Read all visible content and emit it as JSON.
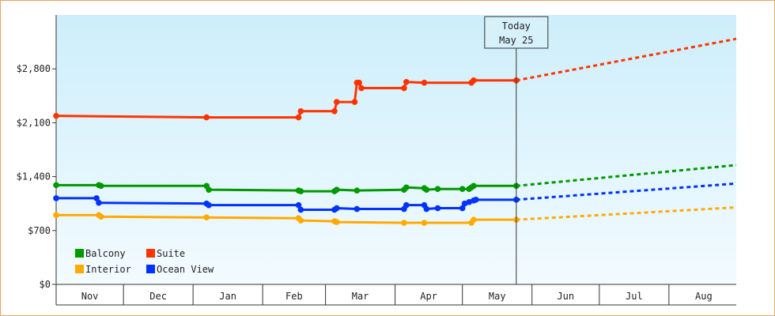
{
  "chart_data": {
    "type": "line",
    "title": "",
    "xlabel": "",
    "ylabel": "",
    "x_type": "date",
    "xlim": [
      "2024-11-01",
      "2025-08-31"
    ],
    "ylim": [
      0,
      3500
    ],
    "yticks": [
      0,
      700,
      1400,
      2100,
      2800
    ],
    "ytick_labels": [
      "$0",
      "$700",
      "$1,400",
      "$2,100",
      "$2,800"
    ],
    "month_ticks": [
      {
        "label": "Nov",
        "start": "2024-11-01",
        "end": "2024-12-01"
      },
      {
        "label": "Dec",
        "start": "2024-12-01",
        "end": "2025-01-01"
      },
      {
        "label": "Jan",
        "start": "2025-01-01",
        "end": "2025-02-01"
      },
      {
        "label": "Feb",
        "start": "2025-02-01",
        "end": "2025-03-01"
      },
      {
        "label": "Mar",
        "start": "2025-03-01",
        "end": "2025-04-01"
      },
      {
        "label": "Apr",
        "start": "2025-04-01",
        "end": "2025-05-01"
      },
      {
        "label": "May",
        "start": "2025-05-01",
        "end": "2025-06-01"
      },
      {
        "label": "Jun",
        "start": "2025-06-01",
        "end": "2025-07-01"
      },
      {
        "label": "Jul",
        "start": "2025-07-01",
        "end": "2025-08-01"
      },
      {
        "label": "Aug",
        "start": "2025-08-01",
        "end": "2025-09-01"
      }
    ],
    "today": {
      "date": "2025-05-25",
      "line1": "Today",
      "line2": "May 25"
    },
    "grid": false,
    "legend_position": "bottom-left",
    "background": {
      "top": "#cdeefb",
      "bottom": "#f3fbff"
    },
    "series": [
      {
        "name": "Suite",
        "color": "#ff3300",
        "points": [
          [
            "2024-11-01",
            2190
          ],
          [
            "2025-01-07",
            2170
          ],
          [
            "2025-02-17",
            2170
          ],
          [
            "2025-02-18",
            2250
          ],
          [
            "2025-03-05",
            2250
          ],
          [
            "2025-03-06",
            2370
          ],
          [
            "2025-03-14",
            2370
          ],
          [
            "2025-03-15",
            2620
          ],
          [
            "2025-03-16",
            2620
          ],
          [
            "2025-03-17",
            2550
          ],
          [
            "2025-04-05",
            2550
          ],
          [
            "2025-04-06",
            2630
          ],
          [
            "2025-04-14",
            2620
          ],
          [
            "2025-05-05",
            2620
          ],
          [
            "2025-05-06",
            2650
          ],
          [
            "2025-05-25",
            2650
          ]
        ],
        "forecast": [
          [
            "2025-05-25",
            2650
          ],
          [
            "2025-08-31",
            3190
          ]
        ]
      },
      {
        "name": "Balcony",
        "color": "#009900",
        "points": [
          [
            "2024-11-01",
            1290
          ],
          [
            "2024-11-20",
            1290
          ],
          [
            "2024-11-21",
            1280
          ],
          [
            "2025-01-07",
            1280
          ],
          [
            "2025-01-08",
            1230
          ],
          [
            "2025-02-17",
            1220
          ],
          [
            "2025-02-18",
            1210
          ],
          [
            "2025-03-05",
            1210
          ],
          [
            "2025-03-06",
            1230
          ],
          [
            "2025-03-15",
            1220
          ],
          [
            "2025-04-05",
            1230
          ],
          [
            "2025-04-06",
            1260
          ],
          [
            "2025-04-14",
            1250
          ],
          [
            "2025-04-15",
            1230
          ],
          [
            "2025-04-20",
            1240
          ],
          [
            "2025-05-01",
            1240
          ],
          [
            "2025-05-04",
            1240
          ],
          [
            "2025-05-05",
            1260
          ],
          [
            "2025-05-06",
            1280
          ],
          [
            "2025-05-25",
            1280
          ]
        ],
        "forecast": [
          [
            "2025-05-25",
            1280
          ],
          [
            "2025-08-31",
            1550
          ]
        ]
      },
      {
        "name": "Ocean View",
        "color": "#0033ff",
        "points": [
          [
            "2024-11-01",
            1120
          ],
          [
            "2024-11-19",
            1120
          ],
          [
            "2024-11-20",
            1060
          ],
          [
            "2025-01-07",
            1050
          ],
          [
            "2025-01-08",
            1030
          ],
          [
            "2025-02-17",
            1030
          ],
          [
            "2025-02-18",
            970
          ],
          [
            "2025-03-05",
            970
          ],
          [
            "2025-03-06",
            990
          ],
          [
            "2025-03-15",
            980
          ],
          [
            "2025-04-05",
            980
          ],
          [
            "2025-04-06",
            1030
          ],
          [
            "2025-04-14",
            1030
          ],
          [
            "2025-04-15",
            980
          ],
          [
            "2025-04-20",
            990
          ],
          [
            "2025-05-01",
            990
          ],
          [
            "2025-05-02",
            1050
          ],
          [
            "2025-05-04",
            1070
          ],
          [
            "2025-05-06",
            1090
          ],
          [
            "2025-05-07",
            1100
          ],
          [
            "2025-05-25",
            1100
          ]
        ],
        "forecast": [
          [
            "2025-05-25",
            1100
          ],
          [
            "2025-08-31",
            1310
          ]
        ]
      },
      {
        "name": "Interior",
        "color": "#ffaa00",
        "points": [
          [
            "2024-11-01",
            900
          ],
          [
            "2024-11-20",
            900
          ],
          [
            "2024-11-21",
            880
          ],
          [
            "2025-01-07",
            870
          ],
          [
            "2025-02-17",
            860
          ],
          [
            "2025-02-18",
            830
          ],
          [
            "2025-03-05",
            820
          ],
          [
            "2025-03-06",
            810
          ],
          [
            "2025-04-05",
            800
          ],
          [
            "2025-04-14",
            800
          ],
          [
            "2025-05-05",
            800
          ],
          [
            "2025-05-06",
            840
          ],
          [
            "2025-05-25",
            840
          ]
        ],
        "forecast": [
          [
            "2025-05-25",
            840
          ],
          [
            "2025-08-31",
            1000
          ]
        ]
      }
    ],
    "legend": {
      "rows": [
        [
          "Balcony",
          "Suite"
        ],
        [
          "Interior",
          "Ocean View"
        ]
      ]
    }
  }
}
